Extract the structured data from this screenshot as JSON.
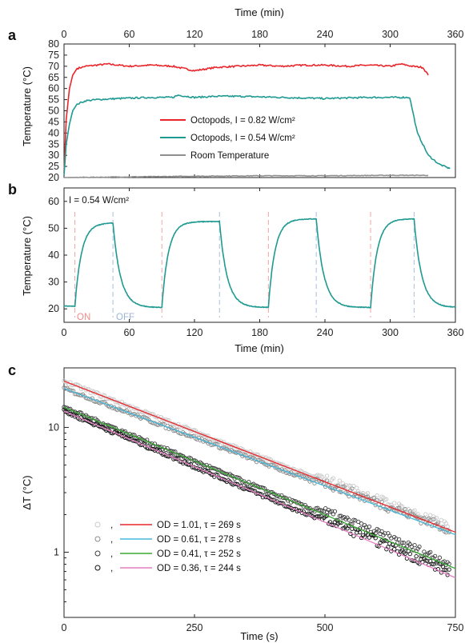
{
  "chart_data": [
    {
      "panel": "a",
      "type": "line",
      "xlabel_top": "Time (min)",
      "ylabel": "Temperature (°C)",
      "xlim": [
        0,
        360
      ],
      "ylim": [
        20,
        80
      ],
      "x_ticks": [
        0,
        60,
        120,
        180,
        240,
        300,
        360
      ],
      "y_ticks": [
        20,
        25,
        30,
        35,
        40,
        45,
        50,
        55,
        60,
        65,
        70,
        75,
        80
      ],
      "legend_position": "center-right",
      "series": [
        {
          "name": "Octopods, I = 0.82 W/cm²",
          "color": "#e8262b",
          "x": [
            0,
            2,
            5,
            8,
            12,
            20,
            30,
            40,
            60,
            80,
            100,
            110,
            120,
            140,
            160,
            180,
            200,
            220,
            240,
            260,
            280,
            300,
            310,
            320,
            330,
            335
          ],
          "y": [
            22,
            46,
            60,
            66,
            69,
            70,
            70.5,
            71,
            70,
            70.5,
            70,
            69,
            68,
            69.5,
            70,
            70.5,
            70,
            70.5,
            70.5,
            70,
            70.5,
            70,
            71,
            70,
            69.5,
            66
          ]
        },
        {
          "name": "Octopods, I = 0.54 W/cm²",
          "color": "#1f9a92",
          "x": [
            0,
            2,
            5,
            8,
            12,
            20,
            30,
            50,
            80,
            100,
            105,
            120,
            140,
            160,
            200,
            240,
            280,
            300,
            315,
            318,
            325,
            335,
            345,
            355
          ],
          "y": [
            21,
            35,
            44,
            50,
            53,
            54.5,
            55,
            55.5,
            56,
            56,
            57,
            56,
            56.5,
            56.5,
            56,
            55.5,
            56,
            56,
            56,
            56,
            40,
            30,
            26,
            24
          ]
        },
        {
          "name": "Room Temperature",
          "color": "#8f8f8f",
          "x": [
            0,
            60,
            120,
            180,
            240,
            300,
            335
          ],
          "y": [
            20,
            20.3,
            20.6,
            20.8,
            20.8,
            21,
            21
          ]
        }
      ]
    },
    {
      "panel": "b",
      "type": "line",
      "xlabel": "Time (min)",
      "ylabel": "Temperature (°C)",
      "xlim": [
        0,
        360
      ],
      "ylim": [
        15,
        65
      ],
      "x_ticks": [
        0,
        60,
        120,
        180,
        240,
        300,
        360
      ],
      "y_ticks": [
        20,
        30,
        40,
        50,
        60
      ],
      "annotation": "I = 0.54 W/cm²",
      "on_label": "ON",
      "off_label": "OFF",
      "on_times": [
        10,
        90,
        188,
        282
      ],
      "off_times": [
        45,
        143,
        232,
        322
      ],
      "baseline": 20.5,
      "plateau": [
        52,
        52.5,
        53.5,
        53.5
      ],
      "end_time": 360,
      "color": "#1f9a92"
    },
    {
      "panel": "c",
      "type": "scatter",
      "xlabel": "Time (s)",
      "ylabel": "ΔT (°C)",
      "xlim": [
        0,
        750
      ],
      "ylim": [
        0.3,
        30
      ],
      "yscale": "log",
      "x_ticks": [
        0,
        250,
        500,
        750
      ],
      "y_ticks": [
        1,
        10
      ],
      "legend_position": "bottom-left",
      "series": [
        {
          "name": "OD = 1.01, τ = 269 s",
          "marker_color": "#c9c9c9",
          "line_color": "#e8262b",
          "A": 23.5,
          "tau": 269
        },
        {
          "name": "OD = 0.61, τ = 278 s",
          "marker_color": "#8a8a8a",
          "line_color": "#45b8da",
          "A": 20.5,
          "tau": 278
        },
        {
          "name": "OD = 0.41, τ = 252 s",
          "marker_color": "#3c3c3c",
          "line_color": "#3aaa35",
          "A": 14.5,
          "tau": 252
        },
        {
          "name": "OD = 0.36, τ = 244 s",
          "marker_color": "#111111",
          "line_color": "#e47fc1",
          "A": 13.5,
          "tau": 244
        }
      ]
    }
  ],
  "panel_labels": [
    "a",
    "b",
    "c"
  ],
  "axis_text": {
    "time_min": "Time (min)",
    "temperature": "Temperature (°C)",
    "time_s": "Time (s)",
    "delta_t": "ΔT (°C)"
  }
}
